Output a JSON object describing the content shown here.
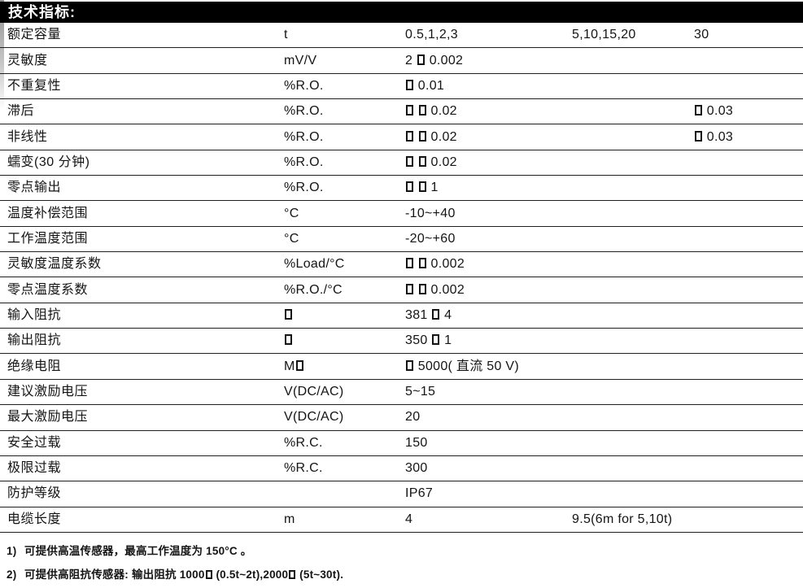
{
  "page": {
    "title": "技术指标:"
  },
  "table": {
    "rows": [
      {
        "label": "额定容量",
        "unit": "t",
        "v1": "0.5,1,2,3",
        "v2": "5,10,15,20",
        "v3": "30"
      },
      {
        "label": "灵敏度",
        "unit": "mV/V",
        "v1": "2 □ 0.002",
        "v2": "",
        "v3": ""
      },
      {
        "label": "不重复性",
        "unit": "%R.O.",
        "v1": "□ 0.01",
        "v2": "",
        "v3": ""
      },
      {
        "label": "滞后",
        "unit": "%R.O.",
        "v1": "□ □ 0.02",
        "v2": "",
        "v3": "□ 0.03"
      },
      {
        "label": "非线性",
        "unit": "%R.O.",
        "v1": "□ □ 0.02",
        "v2": "",
        "v3": "□ 0.03"
      },
      {
        "label": "蠕变(30 分钟)",
        "unit": "%R.O.",
        "v1": "□ □ 0.02",
        "v2": "",
        "v3": ""
      },
      {
        "label": "零点输出",
        "unit": "%R.O.",
        "v1": "□ □ 1",
        "v2": "",
        "v3": ""
      },
      {
        "label": "温度补偿范围",
        "unit": "°C",
        "v1": "-10~+40",
        "v2": "",
        "v3": ""
      },
      {
        "label": "工作温度范围",
        "unit": "°C",
        "v1": "-20~+60",
        "v2": "",
        "v3": ""
      },
      {
        "label": "灵敏度温度系数",
        "unit": "%Load/°C",
        "v1": "□ □ 0.002",
        "v2": "",
        "v3": ""
      },
      {
        "label": "零点温度系数",
        "unit": "%R.O./°C",
        "v1": "□ □ 0.002",
        "v2": "",
        "v3": ""
      },
      {
        "label": "输入阻抗",
        "unit": "□",
        "v1": "381 □ 4",
        "v2": "",
        "v3": ""
      },
      {
        "label": "输出阻抗",
        "unit": "□",
        "v1": "350 □ 1",
        "v2": "",
        "v3": ""
      },
      {
        "label": "绝缘电阻",
        "unit": "M□",
        "v1": "□ 5000( 直流 50 V)",
        "v2": "",
        "v3": ""
      },
      {
        "label": "建议激励电压",
        "unit": "V(DC/AC)",
        "v1": "5~15",
        "v2": "",
        "v3": ""
      },
      {
        "label": "最大激励电压",
        "unit": "V(DC/AC)",
        "v1": "20",
        "v2": "",
        "v3": ""
      },
      {
        "label": "安全过载",
        "unit": "%R.C.",
        "v1": "150",
        "v2": "",
        "v3": ""
      },
      {
        "label": "极限过载",
        "unit": "%R.C.",
        "v1": "300",
        "v2": "",
        "v3": ""
      },
      {
        "label": "防护等级",
        "unit": "",
        "v1": "IP67",
        "v2": "",
        "v3": ""
      },
      {
        "label": "电缆长度",
        "unit": "m",
        "v1": "4",
        "v2": "9.5(6m for 5,10t)",
        "v3": ""
      }
    ]
  },
  "footnotes": [
    {
      "marker": "1)",
      "text": "可提供高温传感器，最高工作温度为 150°C 。"
    },
    {
      "marker": "2)",
      "text": "可提供高阻抗传感器: 输出阻抗 1000□ (0.5t~2t),2000□ (5t~30t)."
    }
  ]
}
